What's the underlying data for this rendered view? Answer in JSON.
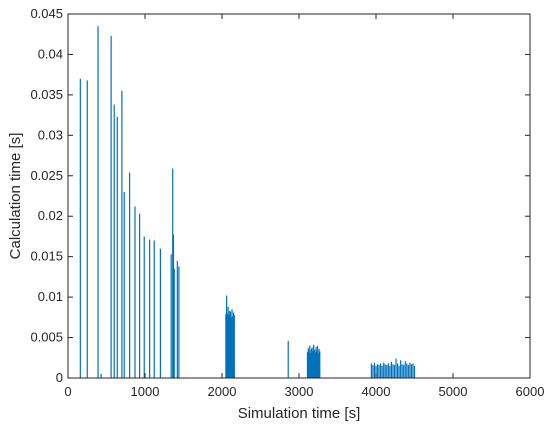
{
  "chart_data": {
    "type": "bar",
    "xlabel": "Simulation time [s]",
    "ylabel": "Calculation time [s]",
    "xlim": [
      0,
      6000
    ],
    "ylim": [
      0,
      0.045
    ],
    "x_ticks": [
      0,
      1000,
      2000,
      3000,
      4000,
      5000,
      6000
    ],
    "x_tick_labels": [
      "0",
      "1000",
      "2000",
      "3000",
      "4000",
      "5000",
      "6000"
    ],
    "y_ticks": [
      0,
      0.005,
      0.01,
      0.015,
      0.02,
      0.025,
      0.03,
      0.035,
      0.04,
      0.045
    ],
    "y_tick_labels": [
      "0",
      "0.005",
      "0.01",
      "0.015",
      "0.02",
      "0.025",
      "0.03",
      "0.035",
      "0.04",
      "0.045"
    ],
    "grid": false,
    "series_color": "#0072BD",
    "series": [
      {
        "x": [
          160,
          250,
          390,
          430,
          560,
          600,
          640,
          700,
          730,
          800,
          870,
          930,
          990,
          1060,
          1120,
          1200,
          1340,
          1360,
          1370,
          1380,
          1420,
          1440,
          2050,
          2060,
          2070,
          2080,
          2090,
          2100,
          2110,
          2120,
          2130,
          2140,
          2150,
          2160,
          2860,
          3110,
          3120,
          3130,
          3140,
          3150,
          3160,
          3170,
          3180,
          3190,
          3200,
          3210,
          3220,
          3230,
          3240,
          3250,
          3260,
          3270,
          3940,
          3960,
          3980,
          4000,
          4020,
          4040,
          4060,
          4080,
          4100,
          4120,
          4140,
          4160,
          4180,
          4200,
          4220,
          4240,
          4260,
          4280,
          4300,
          4320,
          4340,
          4360,
          4380,
          4400,
          4420,
          4440,
          4460,
          4480,
          4500
        ],
        "values": [
          0.037,
          0.0368,
          0.0435,
          0.0005,
          0.0423,
          0.0338,
          0.0323,
          0.0355,
          0.023,
          0.0254,
          0.0212,
          0.0203,
          0.0175,
          0.0171,
          0.017,
          0.016,
          0.0153,
          0.0259,
          0.0177,
          0.0135,
          0.0145,
          0.0138,
          0.0079,
          0.0102,
          0.008,
          0.0088,
          0.0078,
          0.0083,
          0.0082,
          0.0075,
          0.0085,
          0.0076,
          0.0081,
          0.0078,
          0.0046,
          0.0032,
          0.0037,
          0.0034,
          0.004,
          0.0031,
          0.0036,
          0.0038,
          0.0033,
          0.0041,
          0.0035,
          0.0032,
          0.0038,
          0.0034,
          0.004,
          0.0031,
          0.0036,
          0.0033,
          0.0018,
          0.0016,
          0.0019,
          0.0015,
          0.0017,
          0.0016,
          0.0018,
          0.0015,
          0.0019,
          0.0017,
          0.0016,
          0.0018,
          0.0015,
          0.002,
          0.0017,
          0.0016,
          0.0024,
          0.0018,
          0.0015,
          0.0022,
          0.0017,
          0.0016,
          0.0021,
          0.0018,
          0.0016,
          0.0019,
          0.0017,
          0.0018,
          0.0015
        ]
      }
    ]
  }
}
